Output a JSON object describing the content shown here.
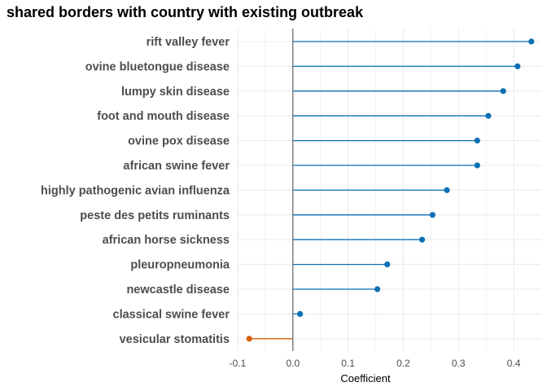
{
  "chart_data": {
    "type": "lollipop",
    "title": "shared borders with country with existing outbreak",
    "xlabel": "Coefficient",
    "ylabel": "",
    "xlim": [
      -0.1,
      0.45
    ],
    "xticks": [
      -0.1,
      0.0,
      0.1,
      0.2,
      0.3,
      0.4
    ],
    "xtick_labels": [
      "-0.1",
      "0.0",
      "0.1",
      "0.2",
      "0.3",
      "0.4"
    ],
    "grid": true,
    "colors": {
      "positive": "#0a6fb4",
      "negative": "#d55e00",
      "zero_line": "#595959",
      "grid": "#ebebeb"
    },
    "categories": [
      "rift valley fever",
      "ovine bluetongue disease",
      "lumpy skin disease",
      "foot and mouth disease",
      "ovine pox disease",
      "african swine fever",
      "highly pathogenic avian influenza",
      "peste des petits ruminants",
      "african horse sickness",
      "pleuropneumonia",
      "newcastle disease",
      "classical swine fever",
      "vesicular stomatitis"
    ],
    "values": [
      0.432,
      0.407,
      0.381,
      0.354,
      0.334,
      0.334,
      0.279,
      0.253,
      0.234,
      0.171,
      0.153,
      0.013,
      -0.079
    ]
  }
}
